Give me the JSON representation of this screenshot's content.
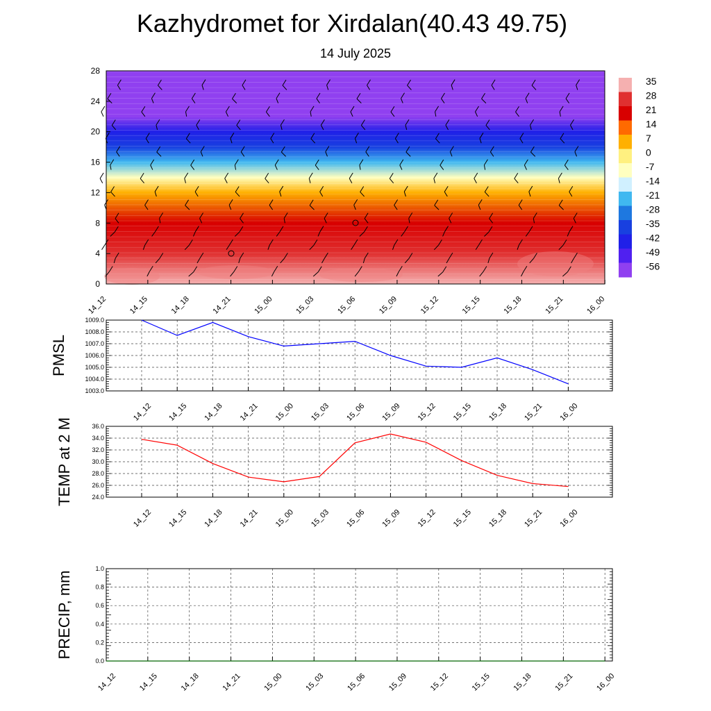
{
  "header": {
    "title": "Kazhydromet for Xirdalan(40.43 49.75)",
    "subtitle": "14 July 2025"
  },
  "chart_data": [
    {
      "type": "heatmap",
      "title": "",
      "x": [
        "14_12",
        "14_15",
        "14_18",
        "14_21",
        "15_00",
        "15_03",
        "15_06",
        "15_09",
        "15_12",
        "15_15",
        "15_18",
        "15_21",
        "16_00"
      ],
      "ylim": [
        0,
        28
      ],
      "yticks": [
        "0",
        "4",
        "8",
        "12",
        "16",
        "20",
        "24",
        "28"
      ],
      "colorbar": {
        "labels": [
          "35",
          "28",
          "21",
          "14",
          "7",
          "0",
          "-7",
          "-14",
          "-21",
          "-28",
          "-35",
          "-42",
          "-49",
          "-56"
        ],
        "colors": [
          "#f5b0b0",
          "#e03030",
          "#d80000",
          "#ff6a00",
          "#ffb000",
          "#fff080",
          "#ffffc0",
          "#d0f0ff",
          "#40b8f0",
          "#1e78e0",
          "#1840e0",
          "#2020e8",
          "#5020f0",
          "#9040f0"
        ]
      },
      "temperature_profile": [
        {
          "height": 0,
          "value": 33
        },
        {
          "height": 4,
          "value": 28
        },
        {
          "height": 8,
          "value": 20
        },
        {
          "height": 12,
          "value": 5
        },
        {
          "height": 14,
          "value": -10
        },
        {
          "height": 16,
          "value": -22
        },
        {
          "height": 18,
          "value": -33
        },
        {
          "height": 20,
          "value": -45
        },
        {
          "height": 22,
          "value": -58
        },
        {
          "height": 28,
          "value": -60
        }
      ],
      "overlay": "wind barbs"
    },
    {
      "type": "line",
      "ylabel": "PMSL",
      "x": [
        "14_12",
        "14_15",
        "14_18",
        "14_21",
        "15_00",
        "15_03",
        "15_06",
        "15_09",
        "15_12",
        "15_15",
        "15_18",
        "15_21",
        "16_00"
      ],
      "values": [
        1009.0,
        1007.7,
        1008.8,
        1007.6,
        1006.8,
        1007.0,
        1007.2,
        1006.0,
        1005.1,
        1005.0,
        1005.8,
        1004.8,
        1003.6
      ],
      "ylim": [
        1003.0,
        1009.0
      ],
      "yticks": [
        "1003.0",
        "1004.0",
        "1005.0",
        "1006.0",
        "1007.0",
        "1008.0",
        "1009.0"
      ],
      "color": "#0000ff",
      "grid": true
    },
    {
      "type": "line",
      "ylabel": "TEMP at 2 M",
      "x": [
        "14_12",
        "14_15",
        "14_18",
        "14_21",
        "15_00",
        "15_03",
        "15_06",
        "15_09",
        "15_12",
        "15_15",
        "15_18",
        "15_21",
        "16_00"
      ],
      "values": [
        33.8,
        32.8,
        29.7,
        27.4,
        26.6,
        27.5,
        33.2,
        34.7,
        33.3,
        30.2,
        27.7,
        26.3,
        25.8
      ],
      "ylim": [
        24.0,
        36.0
      ],
      "yticks": [
        "24.0",
        "26.0",
        "28.0",
        "30.0",
        "32.0",
        "34.0",
        "36.0"
      ],
      "color": "#ff0000",
      "grid": true
    },
    {
      "type": "line",
      "ylabel": "PRECIP, mm",
      "x": [
        "14_12",
        "14_15",
        "14_18",
        "14_21",
        "15_00",
        "15_03",
        "15_06",
        "15_09",
        "15_12",
        "15_15",
        "15_18",
        "15_21",
        "16_00"
      ],
      "values": [
        0,
        0,
        0,
        0,
        0,
        0,
        0,
        0,
        0,
        0,
        0,
        0,
        0
      ],
      "ylim": [
        0.0,
        1.0
      ],
      "yticks": [
        "0.0",
        "0.2",
        "0.4",
        "0.6",
        "0.8",
        "1.0"
      ],
      "color": "#006400",
      "grid": true
    }
  ]
}
